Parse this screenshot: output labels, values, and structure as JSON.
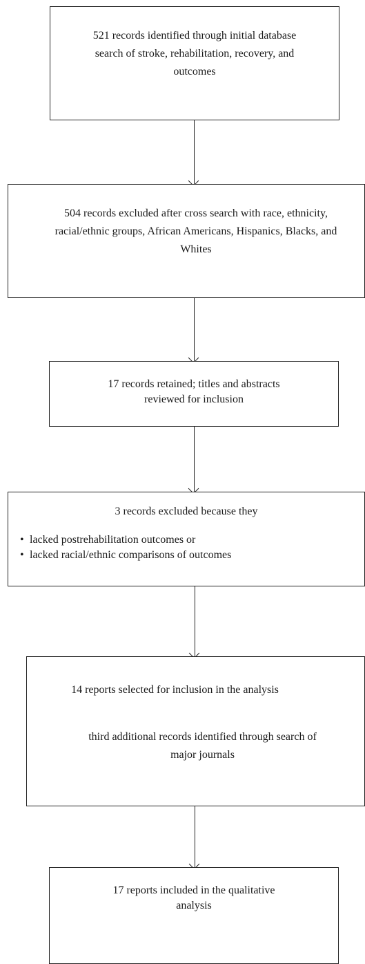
{
  "flow": {
    "box1": {
      "text": "521 records identified through initial database search of stroke, rehabilitation, recovery, and outcomes"
    },
    "box2": {
      "text": "504 records excluded after cross search with race, ethnicity, racial/ethnic groups, African Americans, Hispanics, Blacks, and Whites"
    },
    "box3": {
      "text": "17 records retained; titles and abstracts reviewed for inclusion"
    },
    "box4": {
      "title": "3 records excluded because they",
      "items": [
        "lacked postrehabilitation outcomes or",
        "lacked racial/ethnic comparisons of outcomes"
      ]
    },
    "box5": {
      "text1": "14 reports selected for inclusion in the analysis",
      "text2": "third additional records identified through search of major journals"
    },
    "box6": {
      "text": "17 reports included in the qualitative analysis"
    }
  }
}
